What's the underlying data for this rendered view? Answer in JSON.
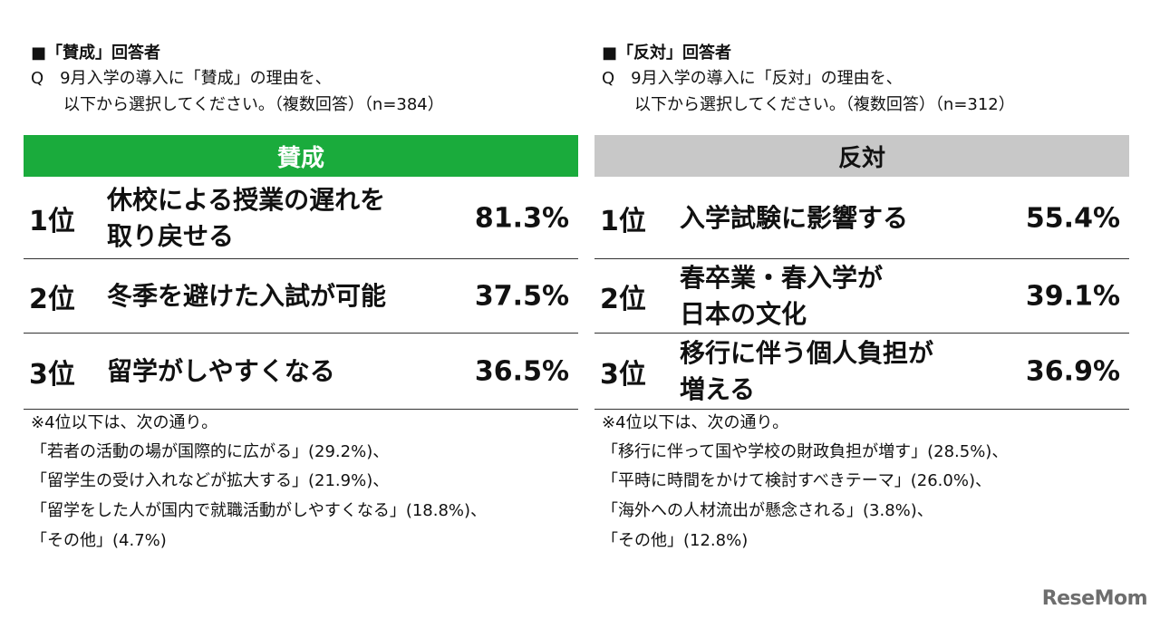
{
  "left": {
    "header": "■「賛成」回答者",
    "question_line1": "Q　9月入学の導入に「賛成」の理由を、",
    "question_line2": "以下から選択してください。（複数回答）（n=384）",
    "banner": "賛成",
    "ranks": [
      {
        "rank": "1位",
        "reason": "休校による授業の遅れを\n取り戻せる",
        "pct": "81.3%"
      },
      {
        "rank": "2位",
        "reason": "冬季を避けた入試が可能",
        "pct": "37.5%"
      },
      {
        "rank": "3位",
        "reason": "留学がしやすくなる",
        "pct": "36.5%"
      }
    ],
    "notes": [
      "※4位以下は、次の通り。",
      "「若者の活動の場が国際的に広がる」(29.2%)、",
      "「留学生の受け入れなどが拡大する」(21.9%)、",
      "「留学をした人が国内で就職活動がしやすくなる」(18.8%)、",
      "「その他」(4.7%)"
    ]
  },
  "right": {
    "header": "■「反対」回答者",
    "question_line1": "Q　9月入学の導入に「反対」の理由を、",
    "question_line2": "以下から選択してください。（複数回答）（n=312）",
    "banner": "反対",
    "ranks": [
      {
        "rank": "1位",
        "reason": "入学試験に影響する",
        "pct": "55.4%"
      },
      {
        "rank": "2位",
        "reason": "春卒業・春入学が\n日本の文化",
        "pct": "39.1%"
      },
      {
        "rank": "3位",
        "reason": "移行に伴う個人負担が\n増える",
        "pct": "36.9%"
      }
    ],
    "notes": [
      "※4位以下は、次の通り。",
      "「移行に伴って国や学校の財政負担が増す」(28.5%)、",
      "「平時に時間をかけて検討すべきテーマ」(26.0%)、",
      "「海外への人材流出が懸念される」(3.8%)、",
      "「その他」(12.8%)"
    ]
  },
  "logo": "ReseMom",
  "colors": {
    "agree_banner": "#1aab3c",
    "oppose_banner": "#c8c8c8"
  }
}
